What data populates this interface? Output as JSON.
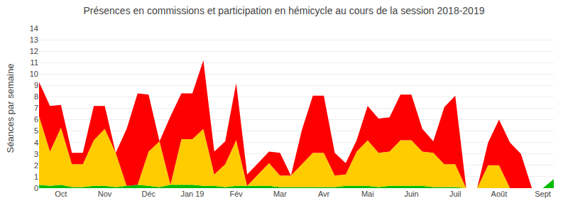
{
  "chart_data": {
    "type": "area",
    "stacked": true,
    "title": "Présences en commissions et participation en hémicycle au cours de la session 2018-2019",
    "ylabel": "Séances par semaine",
    "categories": [
      null,
      null,
      "Oct",
      null,
      null,
      null,
      "Nov",
      null,
      null,
      null,
      "Déc",
      null,
      null,
      null,
      "Jan 19",
      null,
      null,
      null,
      "Fév",
      null,
      null,
      null,
      "Mar",
      null,
      null,
      null,
      "Avr",
      null,
      null,
      null,
      "Mai",
      null,
      null,
      null,
      "Juin",
      null,
      null,
      null,
      "Juil",
      null,
      null,
      null,
      "Août",
      null,
      null,
      null,
      "Sept",
      null
    ],
    "series": [
      {
        "color": "#00bb00",
        "values": [
          0.3,
          0.2,
          0.3,
          0.1,
          0.1,
          0.2,
          0.2,
          0.1,
          0.2,
          0.3,
          0.2,
          0.1,
          0.3,
          0.3,
          0.3,
          0.2,
          0.2,
          0.1,
          0.2,
          0.2,
          0.2,
          0.2,
          0.1,
          0.1,
          0.1,
          0.1,
          0.1,
          0.1,
          0.2,
          0.2,
          0.2,
          0.1,
          0.2,
          0.2,
          0.2,
          0.2,
          0.1,
          0.1,
          0.1,
          0.0,
          0.0,
          0.0,
          0.0,
          0.0,
          0.0,
          0.0,
          0.0,
          0.8
        ]
      },
      {
        "color": "#ffcc00",
        "values": [
          6,
          3,
          5,
          2,
          2,
          4,
          5,
          3,
          0,
          0,
          3,
          4,
          0,
          4,
          4,
          5,
          1,
          2,
          4,
          0,
          1,
          2,
          1,
          1,
          2,
          3,
          3,
          1,
          1,
          3,
          4,
          3,
          3,
          4,
          4,
          3,
          3,
          2,
          2,
          0,
          0,
          2,
          2,
          0,
          0,
          0,
          0,
          0
        ]
      },
      {
        "color": "#ff0000",
        "values": [
          3,
          4,
          2,
          1,
          1,
          3,
          2,
          0,
          5,
          8,
          5,
          0,
          6,
          4,
          4,
          6,
          2,
          2,
          5,
          1,
          1,
          1,
          2,
          0,
          3,
          5,
          5,
          2,
          1,
          1,
          3,
          3,
          3,
          4,
          4,
          2,
          1,
          5,
          6,
          0,
          0,
          2,
          4,
          4,
          3,
          0,
          0,
          0
        ]
      }
    ],
    "ylim": [
      0,
      14
    ],
    "yticks": [
      0,
      1,
      2,
      3,
      4,
      5,
      6,
      7,
      8,
      9,
      10,
      11,
      12,
      13,
      14
    ],
    "grid": true
  }
}
